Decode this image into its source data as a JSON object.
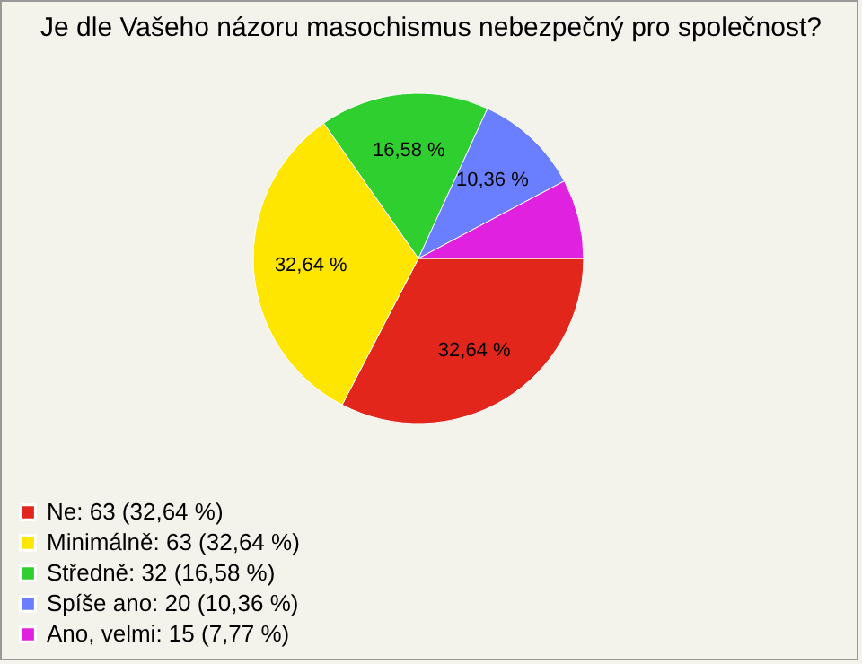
{
  "chart_data": {
    "type": "pie",
    "title": "Je dle Vašeho názoru masochismus nebezpečný pro společnost?",
    "categories": [
      "Ne: 63 (32,64 %)",
      "Minimálně: 63 (32,64 %)",
      "Středně: 32 (16,58 %)",
      "Spíše ano: 20 (10,36 %)",
      "Ano, velmi: 15 (7,77 %)"
    ],
    "values": [
      32.64,
      32.64,
      16.58,
      10.36,
      7.77
    ],
    "colors": [
      "#e3261c",
      "#ffe600",
      "#2fcf2f",
      "#6a7fff",
      "#e022e0"
    ],
    "value_labels": [
      "32,64 %",
      "32,64 %",
      "16,58 %",
      "10,36 %",
      null
    ],
    "legend": "bottom left"
  }
}
